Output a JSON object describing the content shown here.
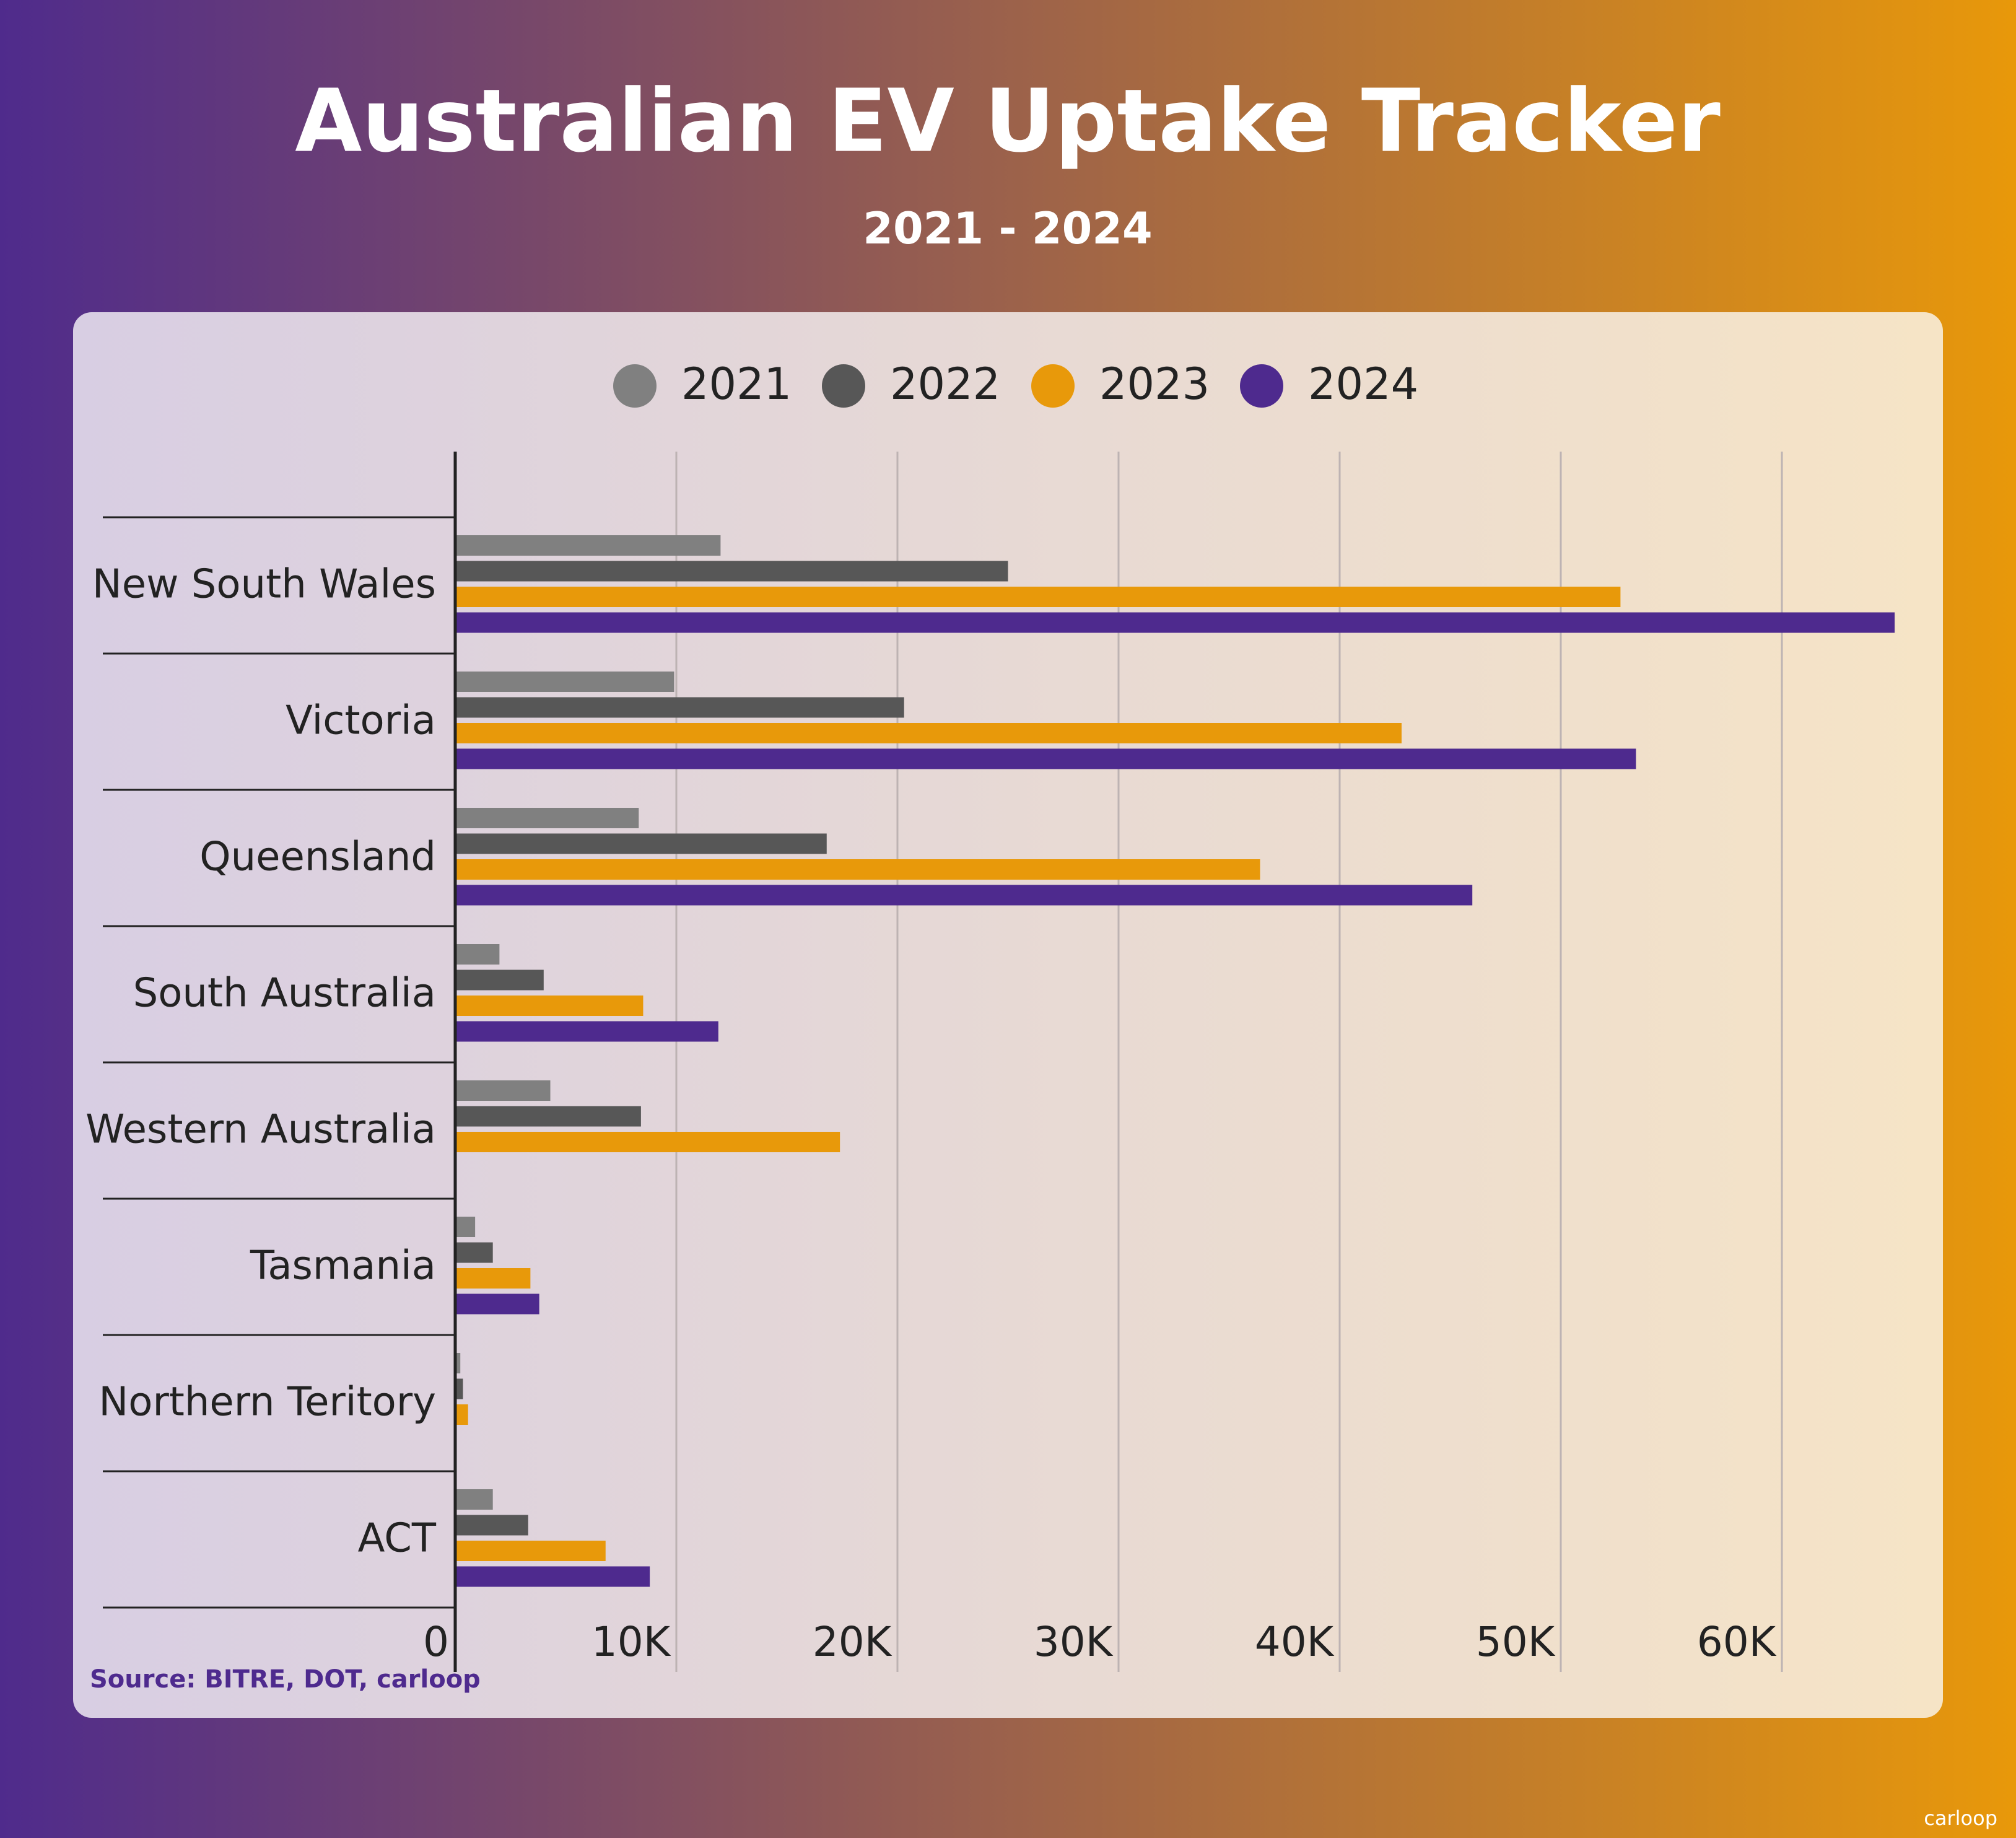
{
  "chart_data": {
    "type": "barh",
    "title": "Australian EV Uptake Tracker",
    "subtitle": "2021 - 2024",
    "categories": [
      "New South Wales",
      "Victoria",
      "Queensland",
      "South Australia",
      "Western Australia",
      "Tasmania",
      "Northern Teritory",
      "ACT"
    ],
    "series": [
      {
        "name": "2021",
        "color": "#808080",
        "values": [
          12000,
          9900,
          8300,
          2000,
          4300,
          900,
          230,
          1700
        ]
      },
      {
        "name": "2022",
        "color": "#575757",
        "values": [
          25000,
          20300,
          16800,
          4000,
          8400,
          1700,
          350,
          3300
        ]
      },
      {
        "name": "2023",
        "color": "#e8990a",
        "values": [
          52700,
          42800,
          36400,
          8500,
          17400,
          3400,
          580,
          6800
        ]
      },
      {
        "name": "2024",
        "color": "#4e2a8e",
        "values": [
          65100,
          53400,
          46000,
          11900,
          null,
          3800,
          null,
          8800
        ]
      }
    ],
    "xlim": [
      0,
      66000
    ],
    "xticks": [
      0,
      {
        "value": 10000,
        "label": "10K"
      },
      {
        "value": 20000,
        "label": "20K"
      },
      {
        "value": 30000,
        "label": "30K"
      },
      {
        "value": 40000,
        "label": "40K"
      },
      {
        "value": 50000,
        "label": "50K"
      },
      {
        "value": 60000,
        "label": "60K"
      }
    ],
    "grid": true,
    "legend": "top",
    "source": "Source: BITRE, DOT, carloop",
    "brand": "carloop"
  }
}
